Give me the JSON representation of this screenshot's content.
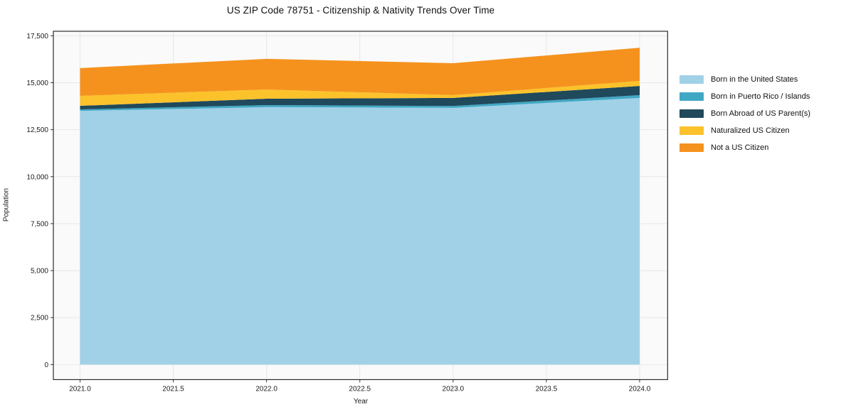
{
  "chart_data": {
    "type": "area",
    "stacked": true,
    "title": "US ZIP Code 78751 - Citizenship & Nativity Trends Over Time",
    "xlabel": "Year",
    "ylabel": "Population",
    "x": [
      2021,
      2022,
      2023,
      2024
    ],
    "series": [
      {
        "name": "Born in the United States",
        "color": "#A1D1E7",
        "values": [
          13500,
          13700,
          13660,
          14190
        ]
      },
      {
        "name": "Born in Puerto Rico / Islands",
        "color": "#41A8C4",
        "values": [
          80,
          110,
          100,
          150
        ]
      },
      {
        "name": "Born Abroad of US Parent(s)",
        "color": "#20495C",
        "values": [
          190,
          340,
          430,
          490
        ]
      },
      {
        "name": "Naturalized US Citizen",
        "color": "#FCC22B",
        "values": [
          530,
          490,
          150,
          265
        ]
      },
      {
        "name": "Not a US Citizen",
        "color": "#F5921E",
        "values": [
          1480,
          1630,
          1700,
          1765
        ]
      }
    ],
    "x_ticks": [
      2021.0,
      2021.5,
      2022.0,
      2022.5,
      2023.0,
      2023.5,
      2024.0
    ],
    "x_tick_labels": [
      "2021.0",
      "2021.5",
      "2022.0",
      "2022.5",
      "2023.0",
      "2023.5",
      "2024.0"
    ],
    "y_ticks": [
      0,
      2500,
      5000,
      7500,
      10000,
      12500,
      15000,
      17500
    ],
    "y_tick_labels": [
      "0",
      "2,500",
      "5,000",
      "7,500",
      "10,000",
      "12,500",
      "15,000",
      "17,500"
    ],
    "xlim": [
      2020.857,
      2024.15
    ],
    "ylim": [
      -800,
      17740
    ],
    "grid": true,
    "legend_position": "right-outside"
  },
  "colors": {
    "figure_background": "#ffffff",
    "plot_background": "#fafafa",
    "gridline": "#e7e7e7",
    "spine": "#2b2b2b",
    "tick": "#333333",
    "text": "#1a1a1a"
  }
}
